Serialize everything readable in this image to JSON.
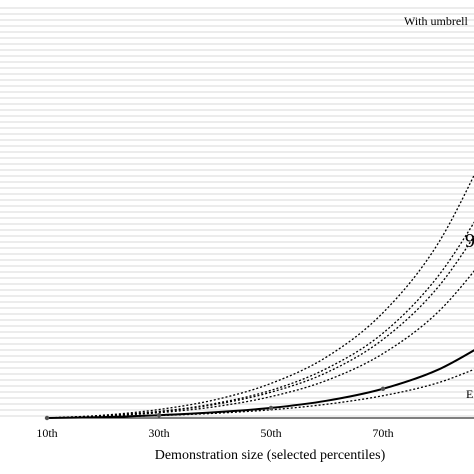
{
  "chart_data": {
    "type": "line",
    "title": "",
    "xlabel": "Demonstration size (selected percentiles)",
    "ylabel": "",
    "x": [
      10,
      20,
      30,
      40,
      50,
      60,
      70,
      80,
      90
    ],
    "x_tick_labels": [
      "10th",
      "30th",
      "50th",
      "70th"
    ],
    "x_tick_values": [
      10,
      30,
      50,
      70
    ],
    "xlim": [
      10,
      90
    ],
    "ylim": [
      0,
      1
    ],
    "grid": true,
    "series": [
      {
        "style": "solid",
        "values": [
          0.0,
          0.003,
          0.009,
          0.018,
          0.032,
          0.055,
          0.093,
          0.155,
          0.255
        ]
      },
      {
        "style": "dotted",
        "values": [
          0.0,
          0.003,
          0.008,
          0.015,
          0.026,
          0.044,
          0.071,
          0.113,
          0.182
        ]
      },
      {
        "style": "dotted",
        "values": [
          0.0,
          0.006,
          0.017,
          0.036,
          0.068,
          0.12,
          0.205,
          0.34,
          0.55
        ]
      },
      {
        "style": "dotted",
        "values": [
          0.0,
          0.007,
          0.02,
          0.043,
          0.082,
          0.145,
          0.25,
          0.42,
          0.68
        ]
      },
      {
        "style": "dotted",
        "values": [
          0.0,
          0.007,
          0.021,
          0.046,
          0.088,
          0.158,
          0.27,
          0.455,
          0.73
        ]
      },
      {
        "style": "dotted",
        "values": [
          0.0,
          0.009,
          0.027,
          0.058,
          0.11,
          0.195,
          0.335,
          0.56,
          0.91
        ]
      }
    ],
    "markers": [
      {
        "x": 10,
        "y": 0.0
      },
      {
        "x": 30,
        "y": 0.009
      },
      {
        "x": 50,
        "y": 0.032
      },
      {
        "x": 70,
        "y": 0.093
      }
    ],
    "annotations": [
      {
        "text": "With umbrell",
        "position": "top-right"
      },
      {
        "text": "9",
        "position": "right"
      },
      {
        "text": "E",
        "position": "bottom-right"
      }
    ]
  }
}
